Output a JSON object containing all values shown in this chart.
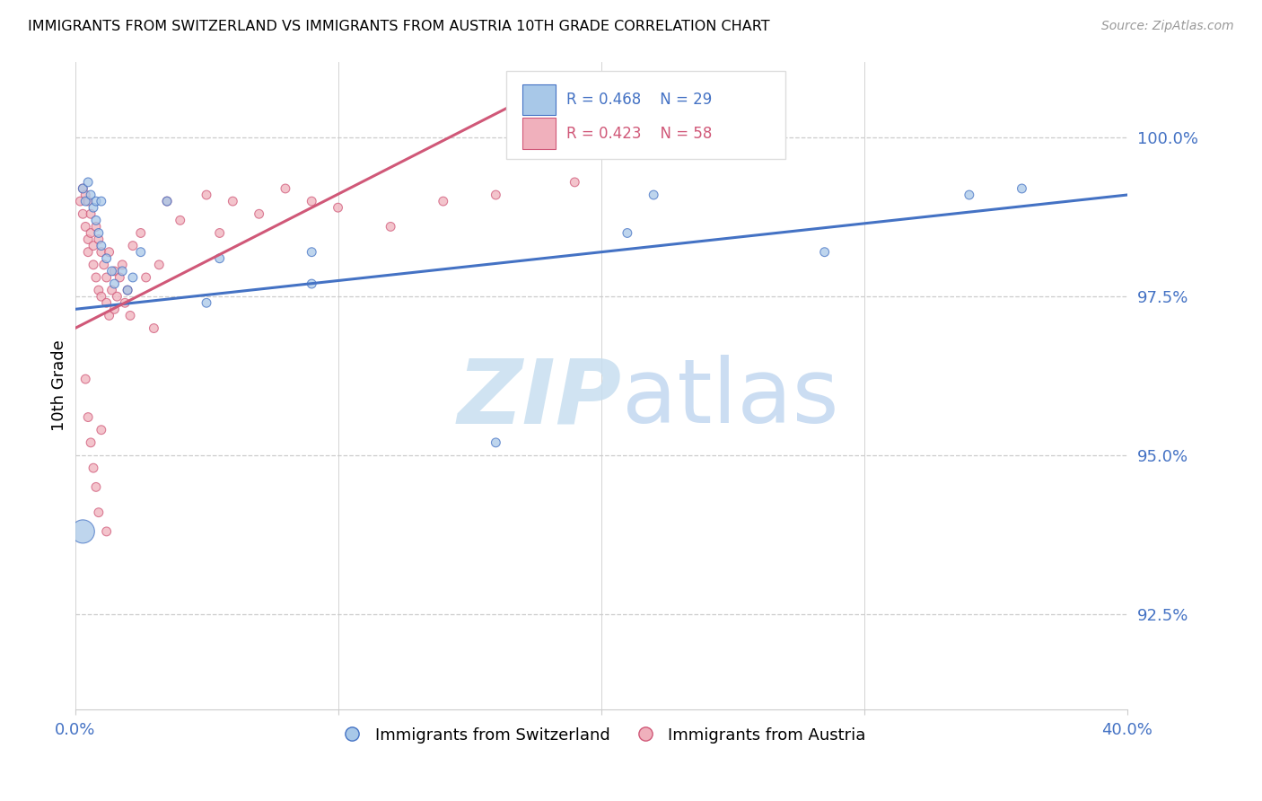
{
  "title": "IMMIGRANTS FROM SWITZERLAND VS IMMIGRANTS FROM AUSTRIA 10TH GRADE CORRELATION CHART",
  "source": "Source: ZipAtlas.com",
  "ylabel": "10th Grade",
  "yticks": [
    92.5,
    95.0,
    97.5,
    100.0
  ],
  "ytick_labels": [
    "92.5%",
    "95.0%",
    "97.5%",
    "100.0%"
  ],
  "xmin": 0.0,
  "xmax": 0.4,
  "ymin": 91.0,
  "ymax": 101.2,
  "legend_r1": "R = 0.468",
  "legend_n1": "N = 29",
  "legend_r2": "R = 0.423",
  "legend_n2": "N = 58",
  "label1": "Immigrants from Switzerland",
  "label2": "Immigrants from Austria",
  "color_blue": "#a8c8e8",
  "color_pink": "#f0b0bc",
  "color_blue_line": "#4472c4",
  "color_pink_line": "#d05878",
  "color_axis_label": "#4472c4",
  "blue_scatter_x": [
    0.003,
    0.004,
    0.005,
    0.006,
    0.007,
    0.008,
    0.008,
    0.009,
    0.01,
    0.01,
    0.012,
    0.014,
    0.015,
    0.018,
    0.02,
    0.022,
    0.025,
    0.035,
    0.05,
    0.055,
    0.09,
    0.09,
    0.16,
    0.21,
    0.22,
    0.285,
    0.003,
    0.36,
    0.34
  ],
  "blue_scatter_y": [
    99.2,
    99.0,
    99.3,
    99.1,
    98.9,
    99.0,
    98.7,
    98.5,
    99.0,
    98.3,
    98.1,
    97.9,
    97.7,
    97.9,
    97.6,
    97.8,
    98.2,
    99.0,
    97.4,
    98.1,
    97.7,
    98.2,
    95.2,
    98.5,
    99.1,
    98.2,
    93.8,
    99.2,
    99.1
  ],
  "blue_scatter_s": [
    50,
    50,
    50,
    50,
    50,
    50,
    50,
    50,
    50,
    50,
    50,
    50,
    50,
    50,
    50,
    50,
    50,
    50,
    50,
    50,
    50,
    50,
    50,
    50,
    50,
    50,
    350,
    50,
    50
  ],
  "pink_scatter_x": [
    0.002,
    0.003,
    0.003,
    0.004,
    0.004,
    0.005,
    0.005,
    0.005,
    0.006,
    0.006,
    0.007,
    0.007,
    0.008,
    0.008,
    0.009,
    0.009,
    0.01,
    0.01,
    0.011,
    0.012,
    0.012,
    0.013,
    0.013,
    0.014,
    0.015,
    0.015,
    0.016,
    0.017,
    0.018,
    0.019,
    0.02,
    0.021,
    0.022,
    0.025,
    0.027,
    0.03,
    0.032,
    0.035,
    0.04,
    0.05,
    0.055,
    0.06,
    0.07,
    0.08,
    0.09,
    0.1,
    0.12,
    0.14,
    0.16,
    0.19,
    0.004,
    0.005,
    0.006,
    0.007,
    0.008,
    0.009,
    0.01,
    0.012
  ],
  "pink_scatter_y": [
    99.0,
    99.2,
    98.8,
    99.1,
    98.6,
    99.0,
    98.4,
    98.2,
    98.8,
    98.5,
    98.3,
    98.0,
    98.6,
    97.8,
    98.4,
    97.6,
    98.2,
    97.5,
    98.0,
    97.8,
    97.4,
    98.2,
    97.2,
    97.6,
    97.9,
    97.3,
    97.5,
    97.8,
    98.0,
    97.4,
    97.6,
    97.2,
    98.3,
    98.5,
    97.8,
    97.0,
    98.0,
    99.0,
    98.7,
    99.1,
    98.5,
    99.0,
    98.8,
    99.2,
    99.0,
    98.9,
    98.6,
    99.0,
    99.1,
    99.3,
    96.2,
    95.6,
    95.2,
    94.8,
    94.5,
    94.1,
    95.4,
    93.8
  ],
  "pink_scatter_s": [
    50,
    50,
    50,
    50,
    50,
    50,
    50,
    50,
    50,
    50,
    50,
    50,
    50,
    50,
    50,
    50,
    50,
    50,
    50,
    50,
    50,
    50,
    50,
    50,
    50,
    50,
    50,
    50,
    50,
    50,
    50,
    50,
    50,
    50,
    50,
    50,
    50,
    50,
    50,
    50,
    50,
    50,
    50,
    50,
    50,
    50,
    50,
    50,
    50,
    50,
    50,
    50,
    50,
    50,
    50,
    50,
    50,
    50
  ],
  "blue_line_x0": 0.0,
  "blue_line_x1": 0.4,
  "blue_line_y0": 97.3,
  "blue_line_y1": 99.1,
  "pink_line_x0": 0.0,
  "pink_line_x1": 0.18,
  "pink_line_y0": 97.0,
  "pink_line_y1": 100.8
}
